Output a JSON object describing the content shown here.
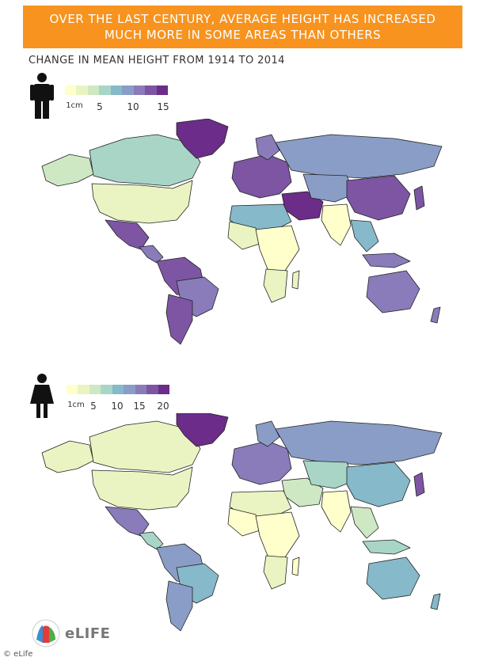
{
  "header": {
    "line1": "OVER THE LAST CENTURY, AVERAGE HEIGHT HAS INCREASED",
    "line2": "MUCH MORE IN SOME AREAS THAN OTHERS",
    "bg_color": "#f7931e"
  },
  "subtitle": "CHANGE IN MEAN HEIGHT FROM 1914 TO 2014",
  "palette": [
    "#ffffcc",
    "#e9f4c2",
    "#cfe8c4",
    "#a8d5c6",
    "#86b9c9",
    "#8a9dc7",
    "#8a7cba",
    "#7d55a3",
    "#6b2c8a"
  ],
  "men": {
    "icon": "male-figure-icon",
    "ticks": [
      "1cm",
      "5",
      "10",
      "15"
    ]
  },
  "women": {
    "icon": "female-figure-icon",
    "ticks": [
      "1cm",
      "5",
      "10",
      "15",
      "20"
    ]
  },
  "logo": {
    "text": "eLIFE",
    "icon": "elife-logo-icon"
  },
  "credit": "© eLife"
}
